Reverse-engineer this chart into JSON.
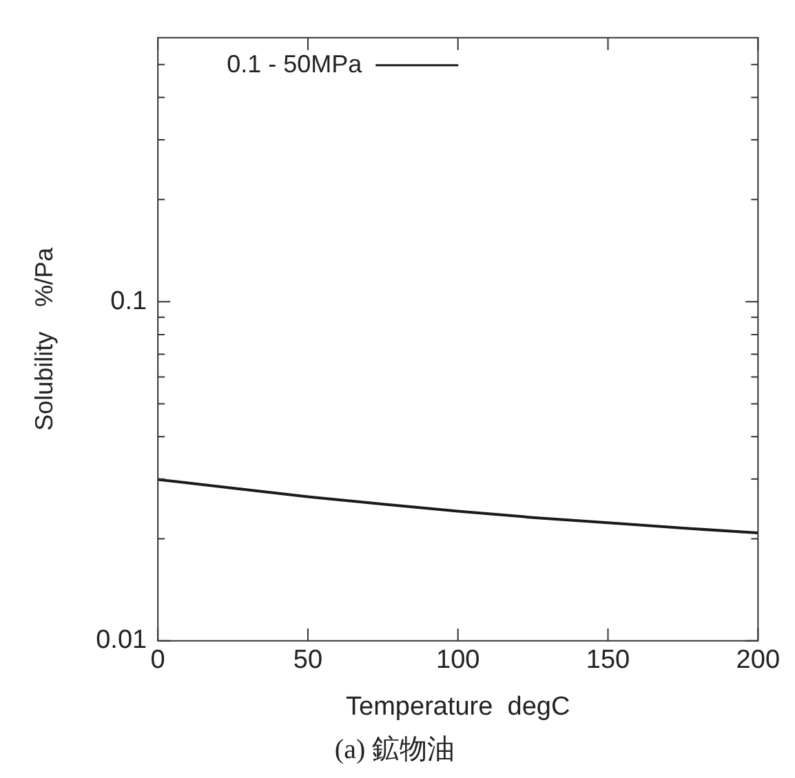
{
  "chart_data": {
    "type": "line",
    "title": "(a) 鉱物油",
    "xlabel": "Temperature  degC",
    "ylabel": "Solubility　%/Pa",
    "x": [
      0,
      25,
      50,
      75,
      100,
      125,
      150,
      175,
      200
    ],
    "series": [
      {
        "name": "0.1 - 50MPa",
        "color": "#1a1a1a",
        "values": [
          0.0299,
          0.0282,
          0.0266,
          0.0253,
          0.0241,
          0.0231,
          0.0223,
          0.0215,
          0.0208
        ]
      }
    ],
    "xlim": [
      0,
      200
    ],
    "xticks": [
      0,
      50,
      100,
      150,
      200
    ],
    "ylim": [
      0.01,
      0.6
    ],
    "yticks": [
      0.01,
      {
        "value": 0.02,
        "label": null
      },
      {
        "value": 0.03,
        "label": null
      },
      {
        "value": 0.04,
        "label": null
      },
      {
        "value": 0.05,
        "label": null
      },
      {
        "value": 0.06,
        "label": null
      },
      {
        "value": 0.07,
        "label": null
      },
      {
        "value": 0.08,
        "label": null
      },
      {
        "value": 0.09,
        "label": null
      },
      0.1,
      {
        "value": 0.2,
        "label": null
      },
      {
        "value": 0.3,
        "label": null
      },
      {
        "value": 0.4,
        "label": null
      },
      {
        "value": 0.5,
        "label": null
      }
    ],
    "log": "y",
    "grid": false,
    "legend": "top left",
    "marker": "none",
    "line_style": "solid"
  }
}
